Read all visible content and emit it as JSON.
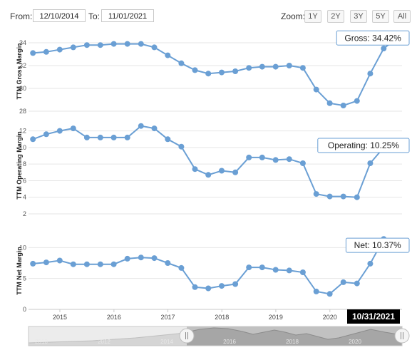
{
  "controls": {
    "from_label": "From:",
    "from_value": "12/10/2014",
    "to_label": "To:",
    "to_value": "11/01/2021",
    "zoom_label": "Zoom:",
    "zoom_buttons": [
      "1Y",
      "2Y",
      "3Y",
      "5Y",
      "All"
    ]
  },
  "chart_data": [
    {
      "type": "line",
      "ylabel": "TTM Gross Margin",
      "ylim": [
        28,
        35
      ],
      "yticks": [
        28,
        30,
        32,
        34
      ],
      "x": [
        "2014-12-31",
        "2015-03-31",
        "2015-06-30",
        "2015-09-30",
        "2015-12-31",
        "2016-03-31",
        "2016-06-30",
        "2016-09-30",
        "2016-12-31",
        "2017-03-31",
        "2017-06-30",
        "2017-09-30",
        "2017-12-31",
        "2018-03-31",
        "2018-06-30",
        "2018-09-30",
        "2018-12-31",
        "2019-03-31",
        "2019-06-30",
        "2019-09-30",
        "2019-12-31",
        "2020-03-31",
        "2020-06-30",
        "2020-09-30",
        "2020-12-31",
        "2021-03-31",
        "2021-06-30",
        "2021-09-30"
      ],
      "values": [
        33.1,
        33.2,
        33.4,
        33.6,
        33.8,
        33.8,
        33.9,
        33.9,
        33.9,
        33.6,
        32.9,
        32.2,
        31.6,
        31.3,
        31.4,
        31.5,
        31.8,
        31.9,
        31.9,
        32.0,
        31.8,
        29.9,
        28.7,
        28.5,
        28.9,
        31.3,
        33.5,
        34.42
      ],
      "tooltip": "Gross: 34.42%",
      "color": "#6a9fd4"
    },
    {
      "type": "line",
      "ylabel": "TTM Operating Margin",
      "ylim": [
        2,
        13
      ],
      "yticks": [
        2,
        4,
        6,
        8,
        10,
        12
      ],
      "x": [
        "2014-12-31",
        "2015-03-31",
        "2015-06-30",
        "2015-09-30",
        "2015-12-31",
        "2016-03-31",
        "2016-06-30",
        "2016-09-30",
        "2016-12-31",
        "2017-03-31",
        "2017-06-30",
        "2017-09-30",
        "2017-12-31",
        "2018-03-31",
        "2018-06-30",
        "2018-09-30",
        "2018-12-31",
        "2019-03-31",
        "2019-06-30",
        "2019-09-30",
        "2019-12-31",
        "2020-03-31",
        "2020-06-30",
        "2020-09-30",
        "2020-12-31",
        "2021-03-31",
        "2021-06-30",
        "2021-09-30"
      ],
      "values": [
        11.0,
        11.6,
        12.0,
        12.3,
        11.2,
        11.2,
        11.2,
        11.2,
        12.6,
        12.3,
        11.0,
        10.1,
        7.4,
        6.7,
        7.2,
        7.0,
        8.8,
        8.8,
        8.5,
        8.6,
        8.1,
        4.4,
        4.1,
        4.1,
        4.0,
        8.1,
        10.0,
        10.25
      ],
      "tooltip": "Operating: 10.25%",
      "color": "#6a9fd4"
    },
    {
      "type": "line",
      "ylabel": "TTM Net Margin",
      "ylim": [
        0,
        12
      ],
      "yticks": [
        0,
        5,
        10
      ],
      "x": [
        "2014-12-31",
        "2015-03-31",
        "2015-06-30",
        "2015-09-30",
        "2015-12-31",
        "2016-03-31",
        "2016-06-30",
        "2016-09-30",
        "2016-12-31",
        "2017-03-31",
        "2017-06-30",
        "2017-09-30",
        "2017-12-31",
        "2018-03-31",
        "2018-06-30",
        "2018-09-30",
        "2018-12-31",
        "2019-03-31",
        "2019-06-30",
        "2019-09-30",
        "2019-12-31",
        "2020-03-31",
        "2020-06-30",
        "2020-09-30",
        "2020-12-31",
        "2021-03-31",
        "2021-06-30",
        "2021-09-30"
      ],
      "values": [
        7.4,
        7.6,
        7.9,
        7.3,
        7.3,
        7.3,
        7.3,
        8.2,
        8.4,
        8.3,
        7.5,
        6.7,
        3.6,
        3.4,
        3.8,
        4.1,
        6.8,
        6.8,
        6.4,
        6.3,
        6.0,
        2.9,
        2.5,
        4.4,
        4.2,
        7.4,
        11.4,
        10.37
      ],
      "tooltip": "Net: 10.37%",
      "color": "#6a9fd4"
    }
  ],
  "x_axis": {
    "ticks": [
      "2015",
      "2016",
      "2017",
      "2018",
      "2019",
      "2020"
    ],
    "hover_date": "10/31/2021"
  },
  "navigator": {
    "years": [
      "2010",
      "2012",
      "2014",
      "2016",
      "2018",
      "2020"
    ]
  }
}
